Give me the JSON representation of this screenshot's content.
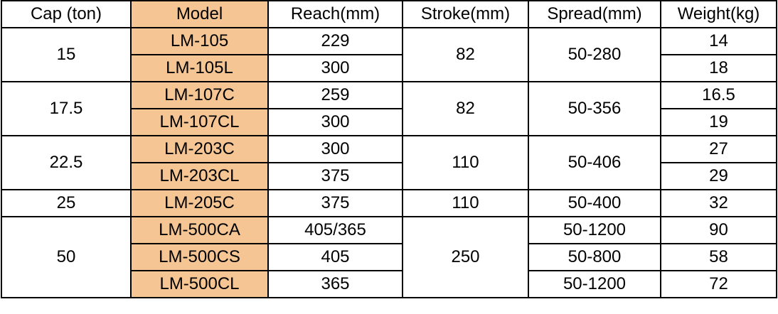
{
  "table": {
    "header": [
      "Cap (ton)",
      "Model",
      "Reach(mm)",
      "Stroke(mm)",
      "Spread(mm)",
      "Weight(kg)"
    ],
    "groups": [
      {
        "cap": "15",
        "stroke": "82",
        "spread": "50-280",
        "items": [
          {
            "model": "LM-105",
            "reach": "229",
            "weight": "14"
          },
          {
            "model": "LM-105L",
            "reach": "300",
            "weight": "18"
          }
        ]
      },
      {
        "cap": "17.5",
        "stroke": "82",
        "spread": "50-356",
        "items": [
          {
            "model": "LM-107C",
            "reach": "259",
            "weight": "16.5"
          },
          {
            "model": "LM-107CL",
            "reach": "300",
            "weight": "19"
          }
        ]
      },
      {
        "cap": "22.5",
        "stroke": "110",
        "spread": "50-406",
        "items": [
          {
            "model": "LM-203C",
            "reach": "300",
            "weight": "27"
          },
          {
            "model": "LM-203CL",
            "reach": "375",
            "weight": "29"
          }
        ]
      },
      {
        "cap": "25",
        "stroke": "110",
        "spread": "50-400",
        "items": [
          {
            "model": "LM-205C",
            "reach": "375",
            "weight": "32"
          }
        ]
      },
      {
        "cap": "50",
        "stroke": "250",
        "items": [
          {
            "model": "LM-500CA",
            "reach": "405/365",
            "spread": "50-1200",
            "weight": "90"
          },
          {
            "model": "LM-500CS",
            "reach": "405",
            "spread": "50-800",
            "weight": "58"
          },
          {
            "model": "LM-500CL",
            "reach": "365",
            "spread": "50-1200",
            "weight": "72"
          }
        ]
      }
    ]
  }
}
